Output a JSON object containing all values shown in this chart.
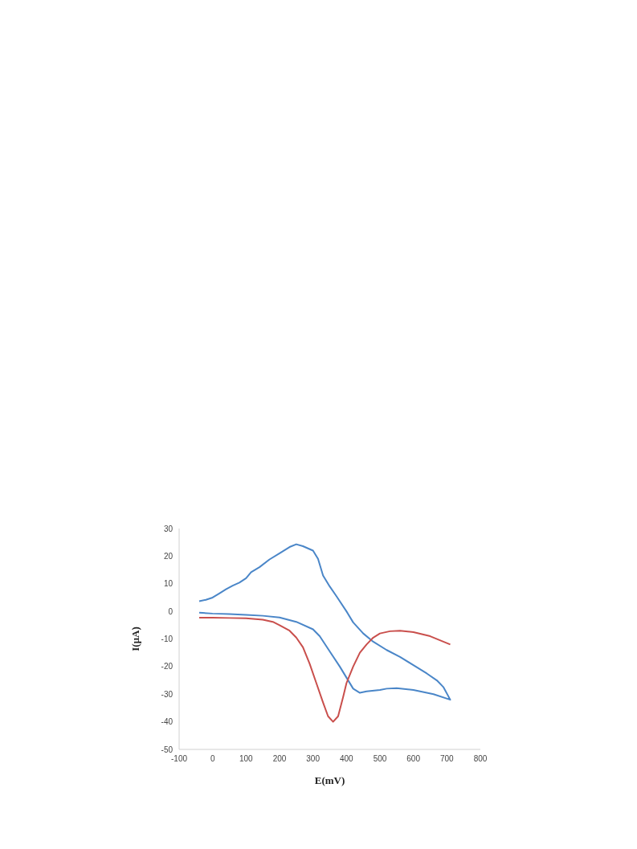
{
  "chart_data": {
    "type": "line",
    "xlabel": "E(mV)",
    "ylabel": "I(μA)",
    "xlim": [
      -100,
      800
    ],
    "xticks": [
      -100,
      0,
      100,
      200,
      300,
      400,
      500,
      600,
      700,
      800
    ],
    "ylim": [
      -50,
      30
    ],
    "yticks": [
      -50,
      -40,
      -30,
      -20,
      -10,
      0,
      10,
      20,
      30
    ],
    "grid": false,
    "legend": false,
    "marker": "none",
    "line_style": "solid",
    "series": [
      {
        "color": "#4a86c8",
        "x": [
          -40,
          -20,
          0,
          20,
          40,
          60,
          80,
          100,
          115,
          140,
          170,
          200,
          230,
          250,
          270,
          300,
          315,
          330,
          350,
          370,
          400,
          420,
          450,
          480,
          520,
          560,
          600,
          640,
          670,
          690,
          710,
          660,
          600,
          550,
          520,
          500,
          460,
          440,
          420,
          400,
          380,
          350,
          320,
          300,
          250,
          200,
          150,
          100,
          50,
          0,
          -40
        ],
        "values": [
          3.7,
          4.2,
          5,
          6.5,
          8,
          9.3,
          10.4,
          12,
          14.2,
          16,
          18.8,
          21,
          23.3,
          24.3,
          23.6,
          22,
          19,
          13,
          9,
          5.5,
          0,
          -4,
          -8,
          -11,
          -14,
          -16.5,
          -19.5,
          -22.5,
          -25,
          -27.5,
          -32,
          -30,
          -28.5,
          -27.8,
          -28,
          -28.5,
          -29,
          -29.5,
          -28,
          -24,
          -20,
          -14.5,
          -9,
          -6.5,
          -3.8,
          -2.2,
          -1.6,
          -1.3,
          -1,
          -0.8,
          -0.5
        ]
      },
      {
        "color": "#c94f4c",
        "x": [
          -40,
          0,
          50,
          100,
          150,
          180,
          200,
          230,
          250,
          270,
          290,
          310,
          330,
          345,
          360,
          375,
          390,
          400,
          420,
          440,
          460,
          480,
          500,
          530,
          560,
          600,
          650,
          710
        ],
        "values": [
          -2.3,
          -2.3,
          -2.4,
          -2.5,
          -3,
          -3.8,
          -5,
          -7,
          -9.5,
          -13,
          -19,
          -26,
          -33,
          -38,
          -40,
          -38,
          -31,
          -26,
          -20,
          -15,
          -12,
          -9.5,
          -8,
          -7.2,
          -7,
          -7.5,
          -9,
          -12
        ]
      }
    ]
  }
}
